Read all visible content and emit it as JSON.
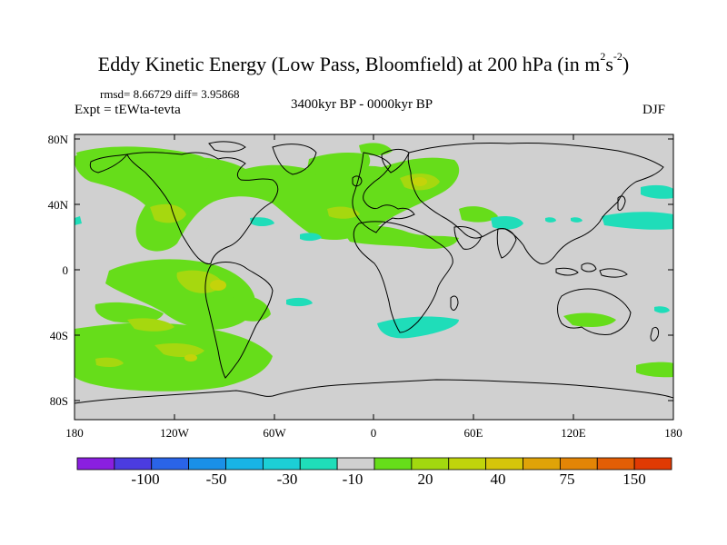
{
  "header": {
    "title_main": "Eddy Kinetic Energy (Low Pass, Bloomfield) at 200 hPa (in m",
    "title_sup1": "2",
    "title_mid": "s",
    "title_sup2": "-2",
    "title_end": ")",
    "stats": "rmsd= 8.66729  diff= 3.95868",
    "experiment": "Expt = tEWta-tevta",
    "period": "3400kyr BP - 0000kyr BP",
    "season": "DJF"
  },
  "axes": {
    "x_ticks": [
      "180",
      "120W",
      "60W",
      "0",
      "60E",
      "120E",
      "180"
    ],
    "y_ticks": [
      "80N",
      "40N",
      "0",
      "40S",
      "80S"
    ]
  },
  "colorbar": {
    "labels": [
      "-100",
      "-50",
      "-30",
      "-10",
      "20",
      "40",
      "75",
      "150"
    ],
    "colors": [
      "#8a1fe0",
      "#4b3ce0",
      "#2a64e8",
      "#1a90e8",
      "#18b4e6",
      "#1ccfd6",
      "#1fddb9",
      "#d0d0d0",
      "#66dd1a",
      "#a2d80f",
      "#c0d40b",
      "#d6c50a",
      "#e0a308",
      "#e38506",
      "#e35e05",
      "#e03a03"
    ]
  },
  "palette": {
    "neutral": "#d0d0d0",
    "green": "#66dd1a",
    "yellow_green": "#a6d80f",
    "yellow": "#c4d30a",
    "cyan": "#1fddb9",
    "coast": "#000000"
  }
}
